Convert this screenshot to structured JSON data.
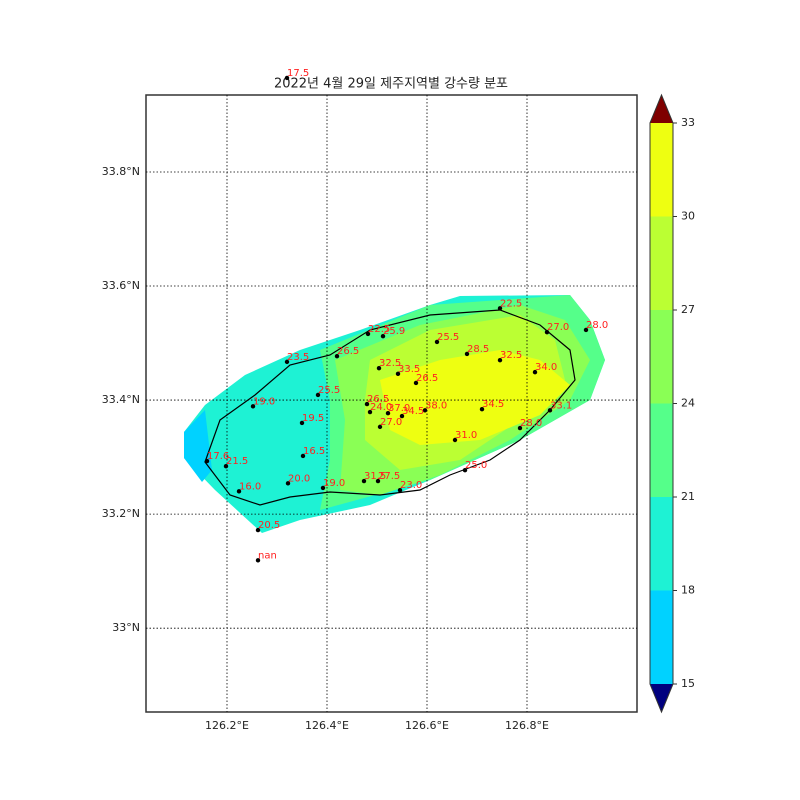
{
  "chart_data": {
    "type": "map",
    "title": "2022년 4월 29일 제주지역별 강수량 분포",
    "xlim": [
      126.038,
      127.02
    ],
    "ylim": [
      32.853,
      33.935
    ],
    "xticks": [
      {
        "value": 126.2,
        "label": "126.2°E"
      },
      {
        "value": 126.4,
        "label": "126.4°E"
      },
      {
        "value": 126.6,
        "label": "126.6°E"
      },
      {
        "value": 126.8,
        "label": "126.8°E"
      }
    ],
    "yticks": [
      {
        "value": 33,
        "label": "33°N"
      },
      {
        "value": 33.2,
        "label": "33.2°N"
      },
      {
        "value": 33.4,
        "label": "33.4°N"
      },
      {
        "value": 33.6,
        "label": "33.6°N"
      },
      {
        "value": 33.8,
        "label": "33.8°N"
      }
    ],
    "grid": true,
    "stations": {
      "lon": [
        126.32,
        126.252,
        126.352,
        126.16,
        126.198,
        126.224,
        126.262,
        126.262,
        126.322,
        126.392,
        126.35,
        126.32,
        126.42,
        126.382,
        126.482,
        126.512,
        126.504,
        126.542,
        126.578,
        126.62,
        126.68,
        126.746,
        126.816,
        126.84,
        126.918,
        126.746,
        126.846,
        126.786,
        126.71,
        126.596,
        126.656,
        126.48,
        126.486,
        126.522,
        126.55,
        126.506,
        126.676,
        126.474,
        126.502,
        126.546
      ],
      "lat": [
        33.965,
        33.389,
        33.302,
        33.293,
        33.284,
        33.24,
        33.172,
        33.119,
        33.254,
        33.246,
        33.36,
        33.467,
        33.477,
        33.409,
        33.516,
        33.512,
        33.456,
        33.446,
        33.43,
        33.502,
        33.481,
        33.47,
        33.449,
        33.519,
        33.523,
        33.561,
        33.382,
        33.351,
        33.384,
        33.382,
        33.33,
        33.393,
        33.379,
        33.377,
        33.372,
        33.353,
        33.277,
        33.258,
        33.258,
        33.242
      ],
      "values": [
        17.5,
        19,
        16.5,
        17.6,
        21.5,
        16,
        20.5,
        null,
        20,
        19,
        19.5,
        23.5,
        26.5,
        25.5,
        22.5,
        25.9,
        32.5,
        33.5,
        26.5,
        25.5,
        28.5,
        32.5,
        34,
        27,
        28,
        22.5,
        33.1,
        28,
        34.5,
        38,
        31,
        26.5,
        24,
        37,
        34.5,
        27,
        25,
        31.5,
        27.5,
        23
      ],
      "value_labels": [
        "17.5",
        "19.0",
        "16.5",
        "17.6",
        "21.5",
        "16.0",
        "20.5",
        "nan",
        "20.0",
        "19.0",
        "19.5",
        "23.5",
        "26.5",
        "25.5",
        "22.5",
        "25.9",
        "32.5",
        "33.5",
        "26.5",
        "25.5",
        "28.5",
        "32.5",
        "34.0",
        "27.0",
        "28.0",
        "22.5",
        "33.1",
        "28.0",
        "34.5",
        "38.0",
        "31.0",
        "26.5",
        "24.0",
        "37.0",
        "34.5",
        "27.0",
        "25.0",
        "31.5",
        "27.5",
        "23.0"
      ]
    },
    "colorbar": {
      "ticks": [
        15,
        18,
        21,
        24,
        27,
        30,
        33
      ],
      "colors": [
        "#00d2ff",
        "#1ef2d4",
        "#55ff8a",
        "#8aff55",
        "#bbff33",
        "#eeff11"
      ],
      "extend_colors": [
        "#00007f",
        "#7f0000"
      ]
    }
  }
}
